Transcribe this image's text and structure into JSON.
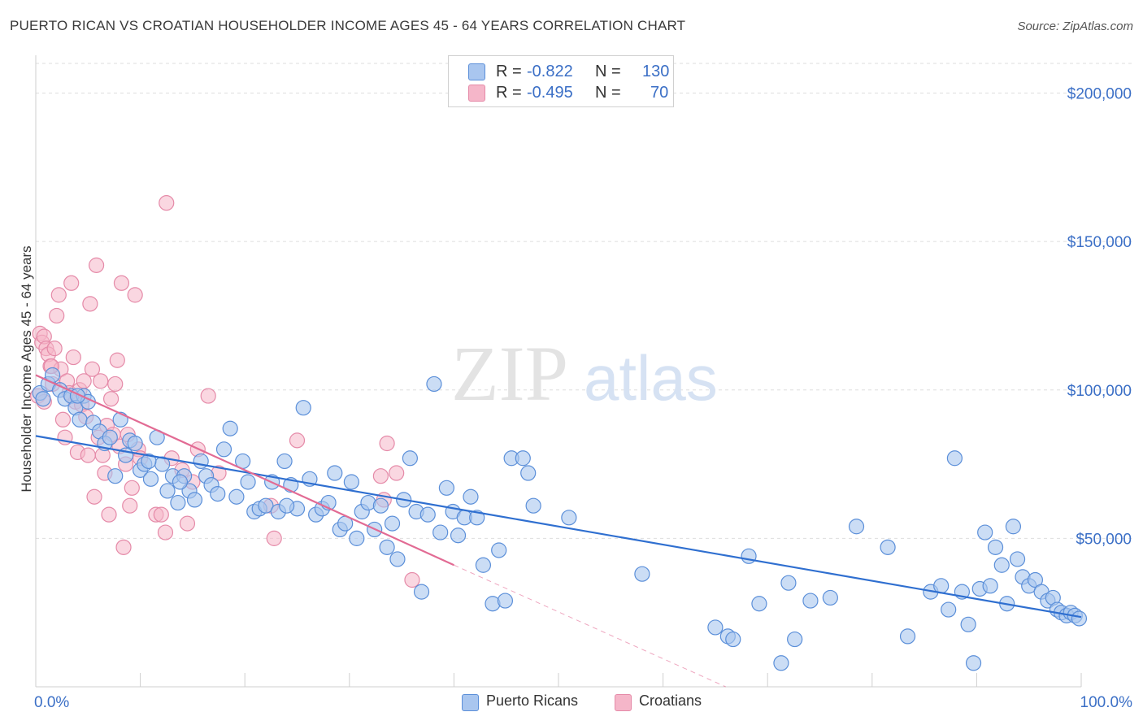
{
  "title": "PUERTO RICAN VS CROATIAN HOUSEHOLDER INCOME AGES 45 - 64 YEARS CORRELATION CHART",
  "source": "Source: ZipAtlas.com",
  "watermark": {
    "zip": "ZIP",
    "atlas": "atlas"
  },
  "legend": {
    "r_label": "R =",
    "n_label": "N =",
    "rows": [
      {
        "r": "-0.822",
        "n": "130"
      },
      {
        "r": "-0.495",
        "n": "70"
      }
    ]
  },
  "colors": {
    "blue_fill": "#a9c6ef",
    "blue_stroke": "#5b8fd9",
    "blue_line": "#2f6fd0",
    "pink_fill": "#f5b6c9",
    "pink_stroke": "#e58aa8",
    "pink_line": "#e26b94",
    "tick_label": "#3b6fc6",
    "grid": "#dedede"
  },
  "chart_data": {
    "type": "scatter",
    "title": "PUERTO RICAN VS CROATIAN HOUSEHOLDER INCOME AGES 45 - 64 YEARS CORRELATION CHART",
    "xlabel": "",
    "ylabel": "Householder Income Ages 45 - 64 years",
    "xlim": [
      0,
      100
    ],
    "ylim": [
      0,
      210000
    ],
    "x_tick_labels": [
      "0.0%",
      "100.0%"
    ],
    "y_ticks": [
      50000,
      100000,
      150000,
      200000
    ],
    "y_tick_labels": [
      "$50,000",
      "$100,000",
      "$150,000",
      "$200,000"
    ],
    "grid": true,
    "legend_position": "top-center and bottom",
    "series": [
      {
        "name": "Puerto Ricans",
        "r": -0.822,
        "n": 130,
        "trend": {
          "x": [
            0,
            100
          ],
          "y": [
            84500,
            23500
          ]
        },
        "points": [
          [
            0.4,
            99000
          ],
          [
            0.7,
            97000
          ],
          [
            1.2,
            102000
          ],
          [
            1.6,
            105000
          ],
          [
            2.3,
            100000
          ],
          [
            2.8,
            97000
          ],
          [
            3.4,
            98000
          ],
          [
            3.8,
            94000
          ],
          [
            4.2,
            90000
          ],
          [
            4.6,
            98000
          ],
          [
            5.0,
            96000
          ],
          [
            5.5,
            89000
          ],
          [
            6.1,
            86000
          ],
          [
            6.6,
            82000
          ],
          [
            7.1,
            84000
          ],
          [
            7.6,
            71000
          ],
          [
            8.1,
            90000
          ],
          [
            8.6,
            78000
          ],
          [
            9.0,
            83000
          ],
          [
            9.5,
            82000
          ],
          [
            10.0,
            73000
          ],
          [
            10.4,
            75000
          ],
          [
            11.0,
            70000
          ],
          [
            11.6,
            84000
          ],
          [
            12.1,
            75000
          ],
          [
            12.6,
            66000
          ],
          [
            13.1,
            71000
          ],
          [
            13.6,
            62000
          ],
          [
            14.2,
            71000
          ],
          [
            14.7,
            66000
          ],
          [
            15.2,
            63000
          ],
          [
            15.8,
            76000
          ],
          [
            16.3,
            71000
          ],
          [
            16.8,
            68000
          ],
          [
            17.4,
            65000
          ],
          [
            18.0,
            80000
          ],
          [
            18.6,
            87000
          ],
          [
            19.2,
            64000
          ],
          [
            19.8,
            76000
          ],
          [
            20.3,
            69000
          ],
          [
            20.9,
            59000
          ],
          [
            21.4,
            60000
          ],
          [
            22.0,
            61000
          ],
          [
            22.6,
            69000
          ],
          [
            23.2,
            59000
          ],
          [
            23.8,
            76000
          ],
          [
            24.4,
            68000
          ],
          [
            25.0,
            60000
          ],
          [
            25.6,
            94000
          ],
          [
            26.2,
            70000
          ],
          [
            26.8,
            58000
          ],
          [
            27.4,
            60000
          ],
          [
            28.0,
            62000
          ],
          [
            28.6,
            72000
          ],
          [
            29.1,
            53000
          ],
          [
            29.6,
            55000
          ],
          [
            30.2,
            69000
          ],
          [
            30.7,
            50000
          ],
          [
            31.2,
            59000
          ],
          [
            31.8,
            62000
          ],
          [
            32.4,
            53000
          ],
          [
            33.0,
            61000
          ],
          [
            33.6,
            47000
          ],
          [
            34.1,
            55000
          ],
          [
            34.6,
            43000
          ],
          [
            35.2,
            63000
          ],
          [
            35.8,
            77000
          ],
          [
            36.4,
            59000
          ],
          [
            36.9,
            32000
          ],
          [
            37.5,
            58000
          ],
          [
            38.1,
            102000
          ],
          [
            38.7,
            52000
          ],
          [
            39.3,
            67000
          ],
          [
            39.9,
            59000
          ],
          [
            40.4,
            51000
          ],
          [
            41.0,
            57000
          ],
          [
            41.6,
            64000
          ],
          [
            42.2,
            57000
          ],
          [
            42.8,
            41000
          ],
          [
            43.7,
            28000
          ],
          [
            44.3,
            46000
          ],
          [
            44.9,
            29000
          ],
          [
            45.5,
            77000
          ],
          [
            46.6,
            77000
          ],
          [
            47.1,
            72000
          ],
          [
            47.6,
            61000
          ],
          [
            51.0,
            57000
          ],
          [
            58.0,
            38000
          ],
          [
            65.0,
            20000
          ],
          [
            66.2,
            17000
          ],
          [
            66.7,
            16000
          ],
          [
            68.2,
            44000
          ],
          [
            69.2,
            28000
          ],
          [
            71.3,
            8000
          ],
          [
            72.0,
            35000
          ],
          [
            72.6,
            16000
          ],
          [
            74.1,
            29000
          ],
          [
            76.0,
            30000
          ],
          [
            78.5,
            54000
          ],
          [
            81.5,
            47000
          ],
          [
            83.4,
            17000
          ],
          [
            85.6,
            32000
          ],
          [
            86.6,
            34000
          ],
          [
            87.3,
            26000
          ],
          [
            87.9,
            77000
          ],
          [
            88.6,
            32000
          ],
          [
            89.2,
            21000
          ],
          [
            89.7,
            8000
          ],
          [
            90.3,
            33000
          ],
          [
            90.8,
            52000
          ],
          [
            91.3,
            34000
          ],
          [
            91.8,
            47000
          ],
          [
            92.4,
            41000
          ],
          [
            92.9,
            28000
          ],
          [
            93.5,
            54000
          ],
          [
            93.9,
            43000
          ],
          [
            94.4,
            37000
          ],
          [
            95.0,
            34000
          ],
          [
            95.6,
            36000
          ],
          [
            96.2,
            32000
          ],
          [
            96.8,
            29000
          ],
          [
            97.3,
            30000
          ],
          [
            97.7,
            26000
          ],
          [
            98.1,
            25000
          ],
          [
            98.6,
            24000
          ],
          [
            99.0,
            25000
          ],
          [
            99.4,
            24000
          ],
          [
            99.8,
            23000
          ],
          [
            4.0,
            98000
          ],
          [
            10.8,
            76000
          ],
          [
            13.8,
            69000
          ],
          [
            24.0,
            61000
          ]
        ]
      },
      {
        "name": "Croatians",
        "r": -0.495,
        "n": 70,
        "trend": {
          "x": [
            0,
            40
          ],
          "y": [
            105000,
            41000
          ]
        },
        "trend_dashed_extension": {
          "x": [
            40,
            66
          ],
          "y": [
            41000,
            0
          ]
        },
        "points": [
          [
            0.2,
            98000
          ],
          [
            0.4,
            119000
          ],
          [
            0.6,
            116000
          ],
          [
            0.8,
            118000
          ],
          [
            1.0,
            114000
          ],
          [
            1.2,
            112000
          ],
          [
            1.4,
            108000
          ],
          [
            1.6,
            102000
          ],
          [
            1.8,
            114000
          ],
          [
            2.0,
            125000
          ],
          [
            2.2,
            132000
          ],
          [
            2.4,
            107000
          ],
          [
            2.6,
            90000
          ],
          [
            2.8,
            84000
          ],
          [
            3.0,
            103000
          ],
          [
            3.2,
            99000
          ],
          [
            3.4,
            136000
          ],
          [
            3.6,
            111000
          ],
          [
            3.8,
            96000
          ],
          [
            4.0,
            79000
          ],
          [
            4.2,
            100000
          ],
          [
            4.4,
            95000
          ],
          [
            4.6,
            103000
          ],
          [
            4.8,
            91000
          ],
          [
            5.0,
            78000
          ],
          [
            5.2,
            129000
          ],
          [
            5.4,
            107000
          ],
          [
            5.6,
            64000
          ],
          [
            5.8,
            142000
          ],
          [
            6.0,
            84000
          ],
          [
            6.2,
            103000
          ],
          [
            6.4,
            78000
          ],
          [
            6.6,
            72000
          ],
          [
            6.8,
            88000
          ],
          [
            7.0,
            58000
          ],
          [
            7.2,
            97000
          ],
          [
            7.4,
            85000
          ],
          [
            7.6,
            102000
          ],
          [
            7.8,
            110000
          ],
          [
            8.0,
            81000
          ],
          [
            8.2,
            136000
          ],
          [
            8.4,
            47000
          ],
          [
            8.6,
            75000
          ],
          [
            8.8,
            85000
          ],
          [
            9.0,
            61000
          ],
          [
            9.2,
            67000
          ],
          [
            9.5,
            132000
          ],
          [
            9.8,
            80000
          ],
          [
            10.0,
            77000
          ],
          [
            11.5,
            58000
          ],
          [
            12.0,
            58000
          ],
          [
            12.4,
            52000
          ],
          [
            12.5,
            163000
          ],
          [
            13.0,
            77000
          ],
          [
            14.0,
            73000
          ],
          [
            14.5,
            55000
          ],
          [
            15.0,
            69000
          ],
          [
            15.5,
            80000
          ],
          [
            16.5,
            98000
          ],
          [
            17.5,
            72000
          ],
          [
            22.5,
            61000
          ],
          [
            22.8,
            50000
          ],
          [
            25.0,
            83000
          ],
          [
            33.0,
            71000
          ],
          [
            33.3,
            63000
          ],
          [
            33.6,
            82000
          ],
          [
            34.5,
            72000
          ],
          [
            36.0,
            36000
          ],
          [
            0.8,
            96000
          ],
          [
            1.5,
            108000
          ]
        ]
      }
    ]
  }
}
